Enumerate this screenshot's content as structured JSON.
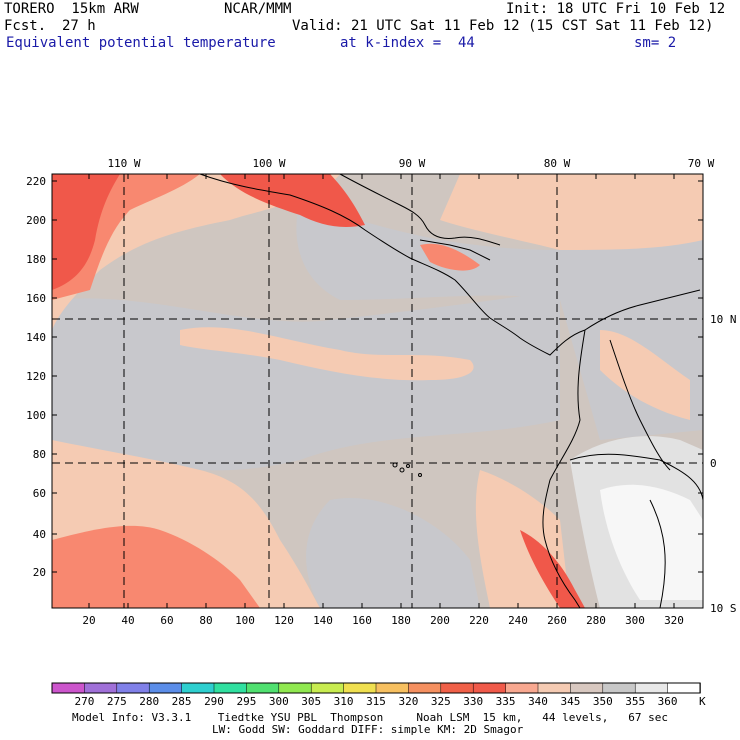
{
  "header": {
    "model": "TORERO  15km ARW",
    "org": "NCAR/MMM",
    "init": "Init: 18 UTC Fri 10 Feb 12",
    "fcst_label": "Fcst.",
    "fcst_value": "27 h",
    "valid": "Valid: 21 UTC Sat 11 Feb 12 (15 CST Sat 11 Feb 12)",
    "field": "Equivalent potential temperature",
    "level": "at k-index =  44",
    "smoothing": "sm= 2"
  },
  "map": {
    "lon_labels": [
      "110 W",
      "100 W",
      "90 W",
      "80 W",
      "70 W"
    ],
    "lat_labels": [
      "10 N",
      "0",
      "10 S"
    ],
    "y_ticks": [
      "20",
      "40",
      "60",
      "80",
      "100",
      "120",
      "140",
      "160",
      "180",
      "200",
      "220"
    ],
    "x_ticks": [
      "20",
      "40",
      "60",
      "80",
      "100",
      "120",
      "140",
      "160",
      "180",
      "200",
      "220",
      "240",
      "260",
      "280",
      "300",
      "320"
    ],
    "colors": {
      "very_high": "#f0584a",
      "high": "#f88870",
      "warm": "#f5cbb3",
      "mid": "#cfc6c0",
      "cool": "#c8c8cc",
      "cold": "#e2e2e2",
      "coldest": "#f7f7f7"
    }
  },
  "legend": {
    "unit": "K",
    "levels": [
      "270",
      "275",
      "280",
      "285",
      "290",
      "295",
      "300",
      "305",
      "310",
      "315",
      "320",
      "325",
      "330",
      "335",
      "340",
      "345",
      "350",
      "355",
      "360"
    ],
    "colors": [
      "#cc55cc",
      "#a070d8",
      "#8080e8",
      "#5b8de8",
      "#2ecfcf",
      "#30e0a0",
      "#50e070",
      "#90e850",
      "#c8ec50",
      "#f0e050",
      "#f7c060",
      "#f59060",
      "#f06048",
      "#f05a4a",
      "#f8a890",
      "#f5cbb3",
      "#d8c8c0",
      "#c8c8c8",
      "#e8e8e8",
      "#ffffff"
    ]
  },
  "footer": {
    "line1": "Model Info: V3.3.1    Tiedtke YSU PBL  Thompson     Noah LSM  15 km,   44 levels,   67 sec",
    "line2": "LW: Godd SW: Goddard DIFF: simple KM: 2D Smagor"
  }
}
